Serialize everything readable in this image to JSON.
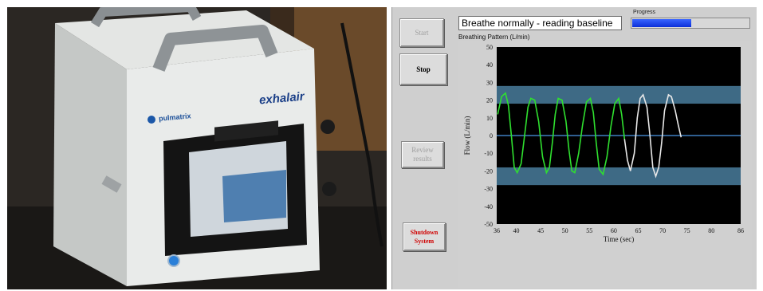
{
  "photo": {
    "brand_left": "pulmatrix",
    "brand_right": "exhalair"
  },
  "buttons": {
    "start": "Start",
    "stop": "Stop",
    "review": "Review results",
    "shutdown": "Shutdown System"
  },
  "status": {
    "message": "Breathe normally - reading baseline",
    "progress_label": "Progress",
    "progress_value": 0.5
  },
  "colors": {
    "green": "#2fe02f",
    "white": "#e8e8e8",
    "band": "#3e6a85",
    "zero_line": "#3f7fbf"
  },
  "chart_data": {
    "type": "line",
    "title": "Breathing Pattern (L/min)",
    "xlabel": "Time (sec)",
    "ylabel": "Flow (L/min)",
    "xlim": [
      36,
      86
    ],
    "ylim": [
      -50,
      50
    ],
    "x_ticks": [
      36,
      40,
      45,
      50,
      55,
      60,
      65,
      70,
      75,
      80,
      86
    ],
    "y_ticks": [
      50,
      40,
      30,
      20,
      10,
      0,
      -10,
      -20,
      -30,
      -40,
      -50
    ],
    "reference_line": 0,
    "bands": [
      [
        18,
        28
      ],
      [
        -28,
        -18
      ]
    ],
    "series": [
      {
        "color": "green",
        "x": [
          36.2,
          37.0,
          37.8,
          38.4,
          39.0,
          39.6,
          40.2,
          41.0,
          41.8,
          42.4,
          43.0,
          43.8,
          44.6,
          45.4,
          46.2,
          46.8,
          47.4,
          48.0,
          48.6,
          49.4,
          50.2,
          50.8,
          51.4,
          52.0,
          52.8,
          53.6,
          54.4,
          55.2,
          55.8,
          56.4,
          57.0,
          57.8,
          58.6,
          59.4,
          60.2,
          61.0,
          61.6,
          62.2
        ],
        "y": [
          12,
          22,
          24,
          17,
          0,
          -18,
          -21,
          -16,
          2,
          16,
          21,
          20,
          8,
          -12,
          -21,
          -18,
          -4,
          12,
          21,
          20,
          8,
          -8,
          -20,
          -21,
          -10,
          6,
          19,
          21,
          13,
          -4,
          -19,
          -22,
          -12,
          5,
          18,
          21,
          12,
          -2
        ]
      },
      {
        "color": "white",
        "x": [
          62.2,
          62.8,
          63.4,
          64.2,
          64.8,
          65.4,
          66.0,
          66.8,
          67.4,
          68.0,
          68.6,
          69.2,
          69.8,
          70.4,
          71.2,
          71.8,
          72.6,
          73.2,
          73.8
        ],
        "y": [
          -2,
          -14,
          -20,
          -10,
          10,
          21,
          23,
          16,
          0,
          -18,
          -23,
          -18,
          -4,
          14,
          23,
          22,
          14,
          6,
          -1
        ]
      }
    ]
  }
}
